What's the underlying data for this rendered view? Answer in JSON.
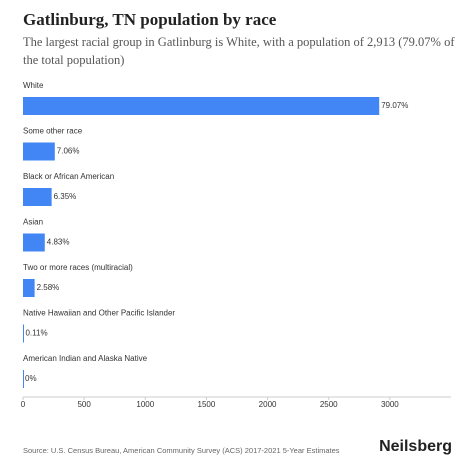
{
  "chart_data": {
    "type": "hbar",
    "title": "Gatlinburg, TN population by race",
    "subtitle": "The largest racial group in Gatlinburg is White, with a population of 2,913 (79.07% of the total population)",
    "categories": [
      "White",
      "Some other race",
      "Black or African American",
      "Asian",
      "Two or more races (multiracial)",
      "Native Hawaiian and Other Pacific Islander",
      "American Indian and Alaska Native"
    ],
    "values": [
      2913,
      260,
      234,
      178,
      95,
      4,
      0
    ],
    "percentages": [
      "79.07%",
      "7.06%",
      "6.35%",
      "4.83%",
      "2.58%",
      "0.11%",
      "0%"
    ],
    "color": "#4285f4",
    "xlim": [
      0,
      3500
    ],
    "xticks": [
      0,
      500,
      1000,
      1500,
      2000,
      2500,
      3000
    ],
    "source": "Source: U.S. Census Bureau, American Community Survey (ACS) 2017-2021 5-Year Estimates",
    "brand": "Neilsberg"
  }
}
